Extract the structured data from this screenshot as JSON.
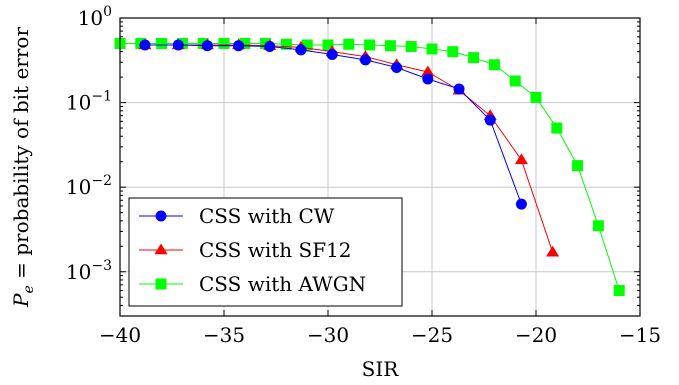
{
  "chart_data": {
    "type": "line",
    "xlabel": "SIR",
    "ylabel": "P_e = probability of bit error",
    "ylabel_parts": {
      "symbol": "P",
      "subscript": "e",
      "rest": " = probability of bit error"
    },
    "xlim": [
      -40,
      -15
    ],
    "ylim": [
      0.0003,
      1
    ],
    "yscale": "log",
    "grid": true,
    "legend_position": "bottom-left",
    "x_ticks": [
      -40,
      -35,
      -30,
      -25,
      -20,
      -15
    ],
    "x_tick_labels": [
      "−40",
      "−35",
      "−30",
      "−25",
      "−20",
      "−15"
    ],
    "y_ticks": [
      {
        "value": 1,
        "base": "10",
        "exp": "0"
      },
      {
        "value": 0.1,
        "base": "10",
        "exp": "−1"
      },
      {
        "value": 0.01,
        "base": "10",
        "exp": "−2"
      },
      {
        "value": 0.001,
        "base": "10",
        "exp": "−3"
      }
    ],
    "series": [
      {
        "name": "CSS with CW",
        "color": "#0000ff",
        "marker": "circle",
        "x": [
          -38.8,
          -37.2,
          -35.8,
          -34.3,
          -32.8,
          -31.3,
          -29.8,
          -28.2,
          -26.7,
          -25.2,
          -23.7,
          -22.2,
          -20.7
        ],
        "y": [
          0.48,
          0.48,
          0.47,
          0.47,
          0.46,
          0.42,
          0.37,
          0.32,
          0.26,
          0.19,
          0.145,
          0.062,
          0.0063
        ]
      },
      {
        "name": "CSS with SF12",
        "color": "#ff0000",
        "marker": "triangle",
        "x": [
          -38.8,
          -37.2,
          -35.8,
          -34.3,
          -32.8,
          -31.3,
          -29.8,
          -28.2,
          -26.7,
          -25.2,
          -23.7,
          -22.2,
          -20.7,
          -19.2
        ],
        "y": [
          0.48,
          0.48,
          0.48,
          0.48,
          0.47,
          0.45,
          0.4,
          0.35,
          0.28,
          0.23,
          0.14,
          0.07,
          0.021,
          0.0017
        ]
      },
      {
        "name": "CSS with AWGN",
        "color": "#00ff00",
        "marker": "square",
        "x": [
          -40,
          -39,
          -38,
          -37,
          -36,
          -35,
          -34,
          -33,
          -32,
          -31,
          -30,
          -29,
          -28,
          -27,
          -26,
          -25,
          -24,
          -23,
          -22,
          -21,
          -20,
          -19,
          -18,
          -17,
          -16
        ],
        "y": [
          0.5,
          0.5,
          0.5,
          0.5,
          0.5,
          0.5,
          0.5,
          0.5,
          0.49,
          0.48,
          0.48,
          0.49,
          0.48,
          0.47,
          0.46,
          0.43,
          0.4,
          0.34,
          0.28,
          0.18,
          0.115,
          0.05,
          0.018,
          0.0035,
          0.0006
        ]
      }
    ]
  }
}
